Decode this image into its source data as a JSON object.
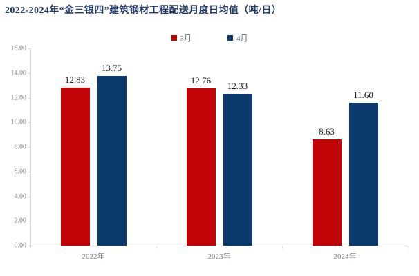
{
  "title": "2022-2024年“金三银四”建筑钢材工程配送月度日均值（吨/日）",
  "chart_data": {
    "type": "bar",
    "title": "2022-2024年“金三银四”建筑钢材工程配送月度日均值（吨/日）",
    "categories": [
      "2022年",
      "2023年",
      "2024年"
    ],
    "series": [
      {
        "name": "3月",
        "color": "#c00408",
        "values": [
          12.83,
          12.76,
          8.63
        ]
      },
      {
        "name": "4月",
        "color": "#0a3a6e",
        "values": [
          13.75,
          12.33,
          11.6
        ]
      }
    ],
    "value_labels": {
      "3月": [
        "12.83",
        "12.76",
        "8.63"
      ],
      "4月": [
        "13.75",
        "12.33",
        "11.60"
      ]
    },
    "ylim": [
      0,
      16
    ],
    "ytick_step": 2,
    "ytick_labels": [
      "0.00",
      "2.00",
      "4.00",
      "6.00",
      "8.00",
      "10.00",
      "12.00",
      "14.00",
      "16.00"
    ],
    "xlabel": "",
    "ylabel": "",
    "grid": false,
    "legend_position": "top-center",
    "colors": {
      "title": "#1f3864",
      "axis": "#d9d9d9",
      "tick_text": "#7f7f7f",
      "value_text": "#1a1a1a",
      "legend_text": "#44546a",
      "background": "#ffffff"
    }
  }
}
